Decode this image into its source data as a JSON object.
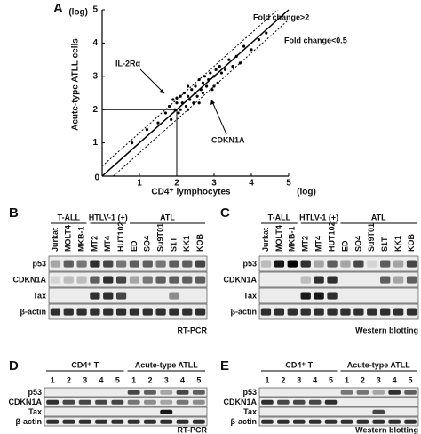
{
  "chart_data": {
    "type": "scatter",
    "label": "A",
    "x_label": "CD4⁺ lymphocytes",
    "y_label": "Acute-type ATLL cells",
    "x_unit": "(log)",
    "y_unit": "(log)",
    "origin_label": "0",
    "annotations": [
      "Fold change>2",
      "Fold change<0.5",
      "IL-2Rα",
      "CDKN1A"
    ],
    "xlim": [
      0,
      5
    ],
    "ylim": [
      0,
      5
    ],
    "xticks": [
      1,
      2,
      3,
      4,
      5
    ],
    "yticks": [
      1,
      2,
      3,
      4,
      5
    ],
    "fold_lines": [
      0.3,
      -0.3
    ],
    "crosshair": {
      "x": 2,
      "y": 2
    },
    "color": "#000000",
    "x": [
      0.8,
      1.2,
      1.5,
      1.7,
      1.8,
      1.85,
      1.9,
      1.95,
      2.0,
      2.05,
      2.1,
      2.1,
      2.15,
      2.2,
      2.25,
      2.3,
      2.3,
      2.35,
      2.4,
      2.45,
      2.5,
      2.5,
      2.55,
      2.6,
      2.65,
      2.7,
      2.7,
      2.75,
      2.8,
      2.85,
      2.9,
      2.95,
      3.0,
      3.05,
      3.1,
      3.15,
      3.2,
      3.3,
      3.4,
      3.5,
      3.6,
      3.7,
      3.8,
      4.0,
      4.2,
      4.4,
      2.0,
      2.6,
      3.0,
      2.3
    ],
    "values": [
      1.0,
      1.4,
      1.6,
      1.9,
      2.1,
      1.7,
      2.3,
      2.0,
      2.2,
      1.9,
      2.4,
      2.0,
      2.2,
      2.5,
      2.1,
      2.4,
      2.7,
      2.3,
      2.6,
      2.2,
      2.7,
      2.5,
      2.4,
      2.9,
      2.6,
      2.8,
      2.5,
      3.0,
      2.7,
      2.9,
      3.1,
      2.6,
      3.0,
      3.2,
      2.8,
      3.3,
      3.1,
      3.2,
      3.5,
      3.3,
      3.6,
      3.4,
      3.9,
      3.8,
      4.1,
      4.3,
      2.35,
      2.2,
      2.7,
      2.0
    ]
  },
  "panels": [
    {
      "letter": "B",
      "footer": "RT-PCR",
      "groups": [
        {
          "label": "T-ALL",
          "lanes": [
            "Jurkat",
            "MOLT4",
            "MKB-1"
          ]
        },
        {
          "label": "HTLV-1 (+)",
          "lanes": [
            "MT2",
            "MT4",
            "HUT102"
          ]
        },
        {
          "label": "ATL",
          "lanes": [
            "ED",
            "SO4",
            "Su9T01",
            "S1T",
            "KK1",
            "KOB"
          ]
        }
      ],
      "rows": [
        {
          "label": "p53",
          "bands": [
            0.3,
            0.6,
            0.5,
            0.8,
            0.7,
            0.5,
            0.6,
            0.6,
            0.5,
            0.6,
            0.6,
            0.7
          ]
        },
        {
          "label": "CDKN1A",
          "bands": [
            0.1,
            0.2,
            0.2,
            0.6,
            0.8,
            0.7,
            0.3,
            0.5,
            0.6,
            0.6,
            0.6,
            0.6
          ]
        },
        {
          "label": "Tax",
          "bands": [
            0,
            0,
            0,
            0.8,
            0.8,
            0.7,
            0,
            0,
            0,
            0.4,
            0,
            0
          ]
        },
        {
          "label": "β-actin",
          "bands": [
            0.8,
            0.8,
            0.8,
            0.8,
            0.8,
            0.8,
            0.8,
            0.8,
            0.8,
            0.8,
            0.8,
            0.8
          ]
        }
      ]
    },
    {
      "letter": "C",
      "footer": "Western blotting",
      "groups": [
        {
          "label": "T-ALL",
          "lanes": [
            "Jurkat",
            "MOLT4",
            "MKB-1"
          ]
        },
        {
          "label": "HTLV-1 (+)",
          "lanes": [
            "MT2",
            "MT4",
            "HUT102"
          ]
        },
        {
          "label": "ATL",
          "lanes": [
            "ED",
            "SO4",
            "Su9T01",
            "S1T",
            "KK1",
            "KOB"
          ]
        }
      ],
      "rows": [
        {
          "label": "p53",
          "bands": [
            0.2,
            0.9,
            1,
            0.8,
            0.3,
            0.6,
            0.3,
            0.7,
            0.1,
            0.6,
            0.3,
            0.7
          ]
        },
        {
          "label": "CDKN1A",
          "bands": [
            0,
            0,
            0,
            0.2,
            0.8,
            0.8,
            0,
            0,
            0,
            0.6,
            0.3,
            0.6
          ]
        },
        {
          "label": "Tax",
          "bands": [
            0,
            0,
            0,
            0.9,
            0.9,
            0.8,
            0,
            0,
            0,
            0,
            0,
            0
          ]
        },
        {
          "label": "β-actin",
          "bands": [
            0.8,
            0.8,
            0.8,
            0.8,
            0.8,
            0.8,
            0.8,
            0.8,
            0.8,
            0.8,
            0.8,
            0.8
          ]
        }
      ]
    },
    {
      "letter": "D",
      "footer": "RT-PCR",
      "groups": [
        {
          "label": "CD4⁺ T",
          "lanes": [
            "1",
            "2",
            "3",
            "4",
            "5"
          ]
        },
        {
          "label": "Acute-type ATLL",
          "lanes": [
            "1",
            "2",
            "3",
            "4",
            "5"
          ]
        }
      ],
      "rows": [
        {
          "label": "p53",
          "bands": [
            0,
            0,
            0,
            0,
            0,
            0.7,
            0.6,
            0.3,
            0.7,
            0.6
          ]
        },
        {
          "label": "CDKN1A",
          "bands": [
            0.8,
            0.7,
            0.7,
            0.7,
            0.7,
            0.5,
            0.4,
            0.3,
            0.5,
            0.4
          ]
        },
        {
          "label": "Tax",
          "bands": [
            0,
            0,
            0,
            0,
            0,
            0,
            0,
            0.9,
            0,
            0
          ]
        },
        {
          "label": "β-actin",
          "bands": [
            0.8,
            0.8,
            0.8,
            0.8,
            0.8,
            0.8,
            0.8,
            0.8,
            0.8,
            0.8
          ]
        }
      ]
    },
    {
      "letter": "E",
      "footer": "Western blotting",
      "groups": [
        {
          "label": "CD4⁺ T",
          "lanes": [
            "1",
            "2",
            "3",
            "4",
            "5"
          ]
        },
        {
          "label": "Acute-type ATLL",
          "lanes": [
            "1",
            "2",
            "3",
            "4",
            "5"
          ]
        }
      ],
      "rows": [
        {
          "label": "p53",
          "bands": [
            0,
            0,
            0,
            0,
            0,
            0.5,
            0.5,
            0.3,
            0.8,
            0.6
          ]
        },
        {
          "label": "CDKN1A",
          "bands": [
            0.8,
            0.7,
            0.7,
            0.7,
            0.8,
            0,
            0,
            0,
            0,
            0
          ]
        },
        {
          "label": "Tax",
          "bands": [
            0,
            0,
            0,
            0,
            0,
            0,
            0,
            0.7,
            0,
            0
          ]
        },
        {
          "label": "β-actin",
          "bands": [
            0.8,
            0.8,
            0.8,
            0.8,
            0.8,
            0.8,
            0.8,
            0.8,
            0.8,
            0.8
          ]
        }
      ]
    }
  ]
}
